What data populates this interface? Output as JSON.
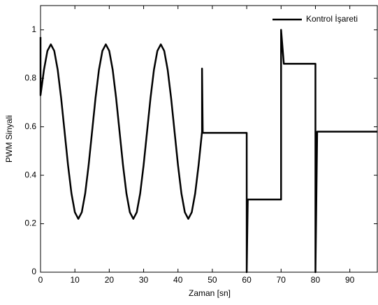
{
  "chart_data": {
    "type": "line",
    "xlabel": "Zaman [sn]",
    "ylabel": "PWM Sinyali",
    "x": [
      0,
      0,
      1,
      2,
      3,
      4,
      5,
      6,
      7,
      8,
      9,
      10,
      11,
      12,
      13,
      14,
      15,
      16,
      17,
      18,
      19,
      20,
      21,
      22,
      23,
      24,
      25,
      26,
      27,
      28,
      29,
      30,
      31,
      32,
      33,
      34,
      35,
      36,
      37,
      38,
      39,
      40,
      41,
      42,
      43,
      44,
      45,
      46,
      47,
      47,
      47.2,
      60,
      60,
      60.3,
      70,
      70,
      70.8,
      80,
      80,
      80.5,
      98
    ],
    "series": [
      {
        "name": "Kontrol İşareti",
        "color": "#000000",
        "values": [
          0.97,
          0.73,
          0.835,
          0.913,
          0.94,
          0.913,
          0.835,
          0.718,
          0.58,
          0.442,
          0.325,
          0.247,
          0.22,
          0.247,
          0.325,
          0.442,
          0.58,
          0.718,
          0.835,
          0.913,
          0.94,
          0.913,
          0.835,
          0.718,
          0.58,
          0.442,
          0.325,
          0.247,
          0.22,
          0.247,
          0.325,
          0.442,
          0.58,
          0.718,
          0.835,
          0.913,
          0.94,
          0.913,
          0.835,
          0.718,
          0.58,
          0.442,
          0.325,
          0.247,
          0.22,
          0.247,
          0.325,
          0.442,
          0.58,
          0.84,
          0.575,
          0.575,
          0,
          0.3,
          0.3,
          1.0,
          0.86,
          0.86,
          0,
          0.58,
          0.58
        ]
      }
    ],
    "xlim": [
      0,
      98
    ],
    "ylim": [
      0,
      1.1
    ],
    "xticks": [
      0,
      10,
      20,
      30,
      40,
      50,
      60,
      70,
      80,
      90
    ],
    "yticks": [
      0,
      0.2,
      0.4,
      0.6,
      0.8,
      1
    ],
    "grid": false,
    "legend": "top-right"
  }
}
